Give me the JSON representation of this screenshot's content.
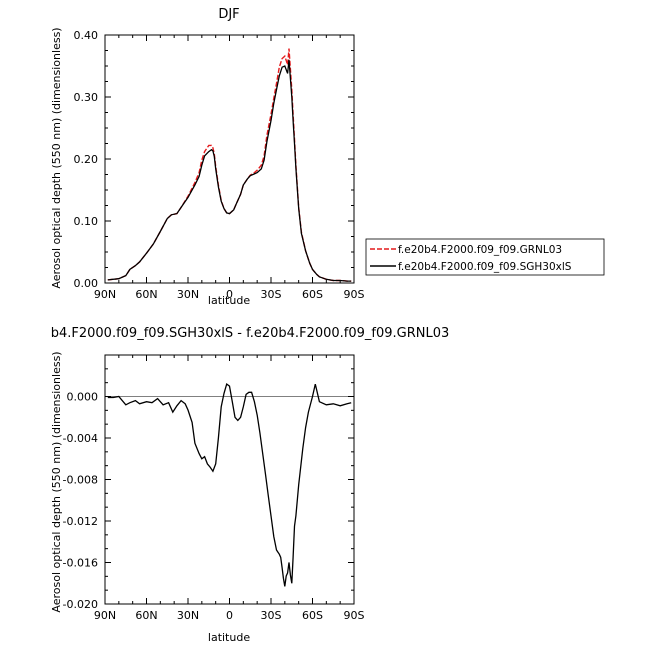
{
  "chart_data": [
    {
      "type": "line",
      "title": "DJF",
      "xlabel": "latitude",
      "ylabel": "Aerosol optical depth (550 nm) (dimensionless)",
      "xlim": [
        90,
        -90
      ],
      "ylim": [
        0.0,
        0.4
      ],
      "x_tick_labels": [
        "90N",
        "60N",
        "30N",
        "0",
        "30S",
        "60S",
        "90S"
      ],
      "y_tick_labels": [
        "0.00",
        "0.10",
        "0.20",
        "0.30",
        "0.40"
      ],
      "legend_position": "right",
      "series": [
        {
          "name": "f.e20b4.F2000.f09_f09.GRNL03",
          "color": "#e41a1c",
          "style": "dashed",
          "x": [
            88,
            80,
            75,
            72,
            68,
            65,
            60,
            55,
            50,
            45,
            42,
            38,
            35,
            30,
            25,
            22,
            20,
            18,
            15,
            13,
            12,
            11,
            10,
            8,
            6,
            4,
            2,
            0,
            -3,
            -5,
            -8,
            -10,
            -13,
            -15,
            -18,
            -20,
            -23,
            -25,
            -27,
            -30,
            -32,
            -34,
            -36,
            -38,
            -40,
            -42,
            -43,
            -44,
            -45,
            -46,
            -47,
            -48,
            -50,
            -52,
            -55,
            -58,
            -60,
            -63,
            -65,
            -70,
            -75,
            -80,
            -85,
            -88
          ],
          "y": [
            0.005,
            0.007,
            0.012,
            0.022,
            0.028,
            0.034,
            0.048,
            0.063,
            0.083,
            0.104,
            0.11,
            0.112,
            0.122,
            0.14,
            0.162,
            0.178,
            0.198,
            0.212,
            0.222,
            0.222,
            0.218,
            0.208,
            0.188,
            0.158,
            0.133,
            0.12,
            0.113,
            0.112,
            0.118,
            0.128,
            0.143,
            0.158,
            0.168,
            0.174,
            0.178,
            0.182,
            0.19,
            0.205,
            0.238,
            0.272,
            0.298,
            0.322,
            0.348,
            0.362,
            0.366,
            0.352,
            0.378,
            0.345,
            0.312,
            0.272,
            0.232,
            0.19,
            0.122,
            0.082,
            0.052,
            0.032,
            0.022,
            0.014,
            0.01,
            0.006,
            0.004,
            0.004,
            0.003,
            0.003
          ]
        },
        {
          "name": "f.e20b4.F2000.f09_f09.SGH30xlS",
          "color": "#000000",
          "style": "solid",
          "x": [
            88,
            80,
            75,
            72,
            68,
            65,
            60,
            55,
            50,
            45,
            42,
            38,
            35,
            30,
            25,
            22,
            20,
            18,
            15,
            13,
            12,
            11,
            10,
            8,
            6,
            4,
            2,
            0,
            -3,
            -5,
            -8,
            -10,
            -13,
            -15,
            -18,
            -20,
            -23,
            -25,
            -27,
            -30,
            -32,
            -34,
            -36,
            -38,
            -40,
            -42,
            -43,
            -44,
            -45,
            -46,
            -47,
            -48,
            -50,
            -52,
            -55,
            -58,
            -60,
            -63,
            -65,
            -70,
            -75,
            -80,
            -85,
            -88
          ],
          "y": [
            0.005,
            0.007,
            0.012,
            0.022,
            0.028,
            0.034,
            0.048,
            0.063,
            0.083,
            0.104,
            0.11,
            0.112,
            0.122,
            0.138,
            0.158,
            0.172,
            0.19,
            0.205,
            0.212,
            0.215,
            0.213,
            0.204,
            0.184,
            0.155,
            0.132,
            0.12,
            0.113,
            0.112,
            0.118,
            0.128,
            0.143,
            0.158,
            0.168,
            0.173,
            0.176,
            0.178,
            0.184,
            0.198,
            0.228,
            0.262,
            0.29,
            0.312,
            0.334,
            0.348,
            0.35,
            0.338,
            0.36,
            0.33,
            0.3,
            0.262,
            0.225,
            0.185,
            0.12,
            0.08,
            0.052,
            0.032,
            0.022,
            0.014,
            0.01,
            0.006,
            0.004,
            0.004,
            0.003,
            0.003
          ]
        }
      ]
    },
    {
      "type": "line",
      "title": "b4.F2000.f09_f09.SGH30xlS - f.e20b4.F2000.f09_f09.GRNL03",
      "xlabel": "latitude",
      "ylabel": "Aerosol optical depth (550 nm) (dimensionless)",
      "xlim": [
        90,
        -90
      ],
      "ylim": [
        -0.02,
        0.004
      ],
      "x_tick_labels": [
        "90N",
        "60N",
        "30N",
        "0",
        "30S",
        "60S",
        "90S"
      ],
      "y_tick_labels": [
        "-0.020",
        "-0.016",
        "-0.012",
        "-0.008",
        "-0.004",
        "0.000"
      ],
      "series": [
        {
          "color": "#000000",
          "style": "solid",
          "x": [
            88,
            84,
            80,
            75,
            72,
            68,
            65,
            60,
            56,
            52,
            48,
            44,
            41,
            38,
            35,
            32,
            30,
            27,
            25,
            22,
            20,
            18,
            16,
            14,
            12,
            10,
            8,
            6,
            4,
            2,
            0,
            -2,
            -4,
            -6,
            -8,
            -10,
            -12,
            -14,
            -16,
            -18,
            -20,
            -22,
            -24,
            -26,
            -28,
            -30,
            -32,
            -34,
            -35,
            -36,
            -37,
            -38,
            -39,
            -40,
            -41,
            -42,
            -43,
            -44,
            -45,
            -46,
            -47,
            -48,
            -50,
            -53,
            -55,
            -57,
            -60,
            -62,
            -65,
            -70,
            -75,
            -80,
            -85,
            -88
          ],
          "y": [
            -0.0001,
            -0.0001,
            0.0,
            -0.0008,
            -0.0006,
            -0.0004,
            -0.0007,
            -0.0005,
            -0.0006,
            -0.0002,
            -0.0008,
            -0.0006,
            -0.0015,
            -0.0009,
            -0.0004,
            -0.0007,
            -0.0013,
            -0.0025,
            -0.0045,
            -0.0055,
            -0.006,
            -0.0058,
            -0.0065,
            -0.0068,
            -0.0072,
            -0.0065,
            -0.004,
            -0.001,
            0.0003,
            0.0012,
            0.001,
            -0.0005,
            -0.002,
            -0.0023,
            -0.002,
            -0.001,
            0.0002,
            0.0004,
            0.0004,
            -0.0005,
            -0.0018,
            -0.0035,
            -0.0055,
            -0.0075,
            -0.0095,
            -0.0115,
            -0.0135,
            -0.0148,
            -0.015,
            -0.0152,
            -0.0155,
            -0.0165,
            -0.0175,
            -0.0183,
            -0.0173,
            -0.017,
            -0.016,
            -0.0172,
            -0.018,
            -0.0155,
            -0.0125,
            -0.0115,
            -0.0085,
            -0.005,
            -0.003,
            -0.0015,
            0.0,
            0.0012,
            -0.0005,
            -0.0008,
            -0.0007,
            -0.0009,
            -0.0007,
            -0.0006
          ]
        }
      ]
    }
  ]
}
